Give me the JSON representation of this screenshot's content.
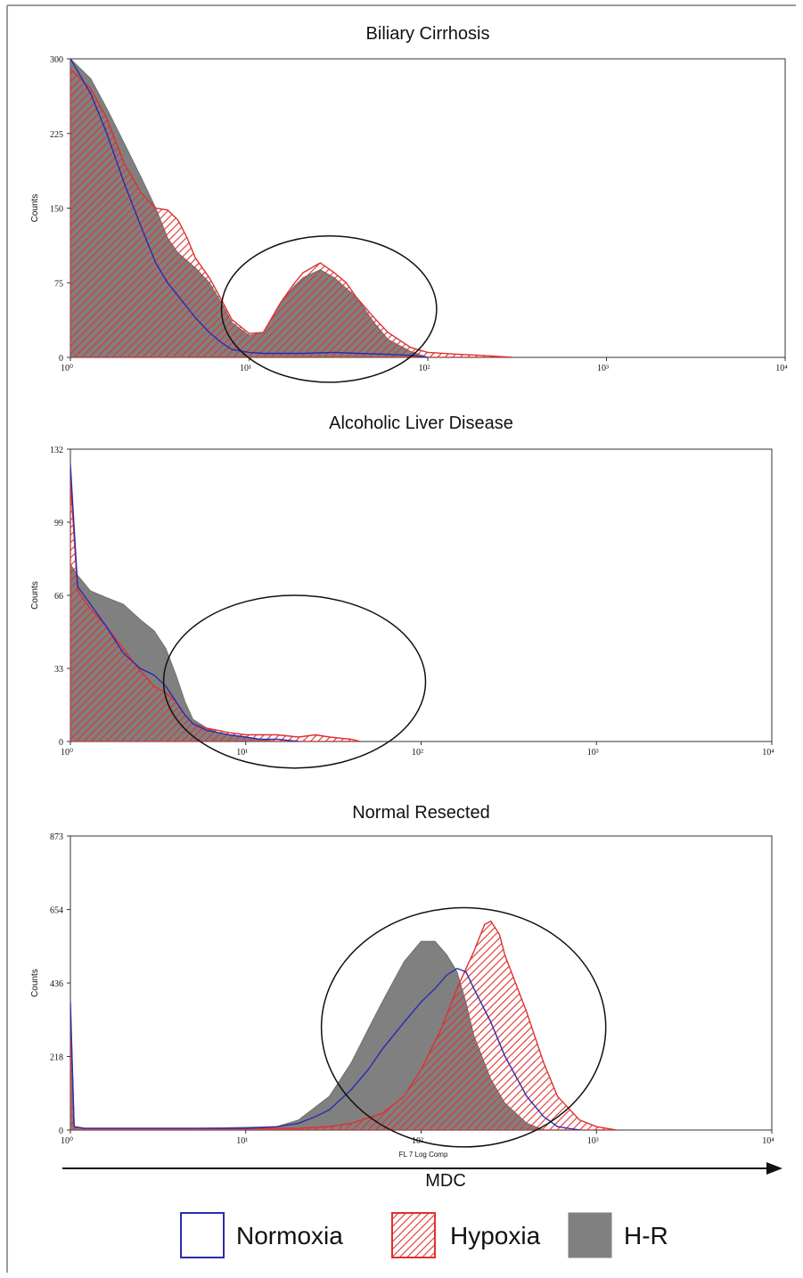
{
  "chart_data": [
    {
      "type": "area",
      "title": "Biliary Cirrhosis",
      "ylabel": "Counts",
      "xlabel": "",
      "xscale": "log",
      "xlim": [
        1,
        10000
      ],
      "ylim": [
        0,
        300
      ],
      "yticks": [
        "0",
        "75",
        "150",
        "225",
        "300"
      ],
      "xticks": [
        "10⁰",
        "10¹",
        "10²",
        "10³",
        "10⁴"
      ],
      "gate_ellipse": {
        "x_range": [
          7,
          112
        ],
        "y_range": [
          -25,
          122
        ]
      },
      "series": [
        {
          "name": "Normoxia",
          "x": [
            1,
            1.3,
            1.6,
            2,
            2.5,
            3,
            3.5,
            4,
            5,
            6,
            7,
            8,
            10,
            12,
            15,
            20,
            30,
            40,
            60,
            80,
            100
          ],
          "y": [
            300,
            265,
            225,
            175,
            130,
            95,
            75,
            62,
            40,
            25,
            15,
            8,
            5,
            4,
            4,
            4,
            5,
            4,
            3,
            2,
            0
          ]
        },
        {
          "name": "Hypoxia",
          "x": [
            1,
            1.3,
            1.6,
            2,
            2.5,
            3,
            3.5,
            4,
            4.5,
            5,
            6,
            7,
            8,
            10,
            12,
            15,
            18,
            20,
            25,
            30,
            35,
            40,
            50,
            60,
            80,
            100,
            150,
            200,
            300
          ],
          "y": [
            290,
            270,
            240,
            195,
            165,
            150,
            148,
            138,
            120,
            100,
            80,
            58,
            38,
            24,
            25,
            55,
            75,
            85,
            95,
            85,
            75,
            60,
            40,
            25,
            10,
            5,
            3,
            2,
            0
          ]
        },
        {
          "name": "H-R",
          "x": [
            1,
            1.3,
            1.6,
            2,
            2.5,
            3,
            3.5,
            4,
            5,
            6,
            7,
            8,
            10,
            12,
            15,
            18,
            20,
            25,
            30,
            40,
            50,
            60,
            80,
            100
          ],
          "y": [
            300,
            280,
            250,
            215,
            180,
            150,
            120,
            105,
            90,
            75,
            55,
            35,
            22,
            25,
            55,
            72,
            80,
            88,
            80,
            60,
            35,
            18,
            6,
            0
          ]
        }
      ]
    },
    {
      "type": "area",
      "title": "Alcoholic Liver Disease",
      "ylabel": "Counts",
      "xlabel": "",
      "xscale": "log",
      "xlim": [
        1,
        10000
      ],
      "ylim": [
        0,
        132
      ],
      "yticks": [
        "0",
        "33",
        "66",
        "99",
        "132"
      ],
      "xticks": [
        "10⁰",
        "10¹",
        "10²",
        "10³",
        "10⁴"
      ],
      "gate_ellipse": {
        "x_range": [
          3.4,
          106
        ],
        "y_range": [
          -12,
          66
        ]
      },
      "series": [
        {
          "name": "Normoxia",
          "x": [
            1,
            1.1,
            1.3,
            1.6,
            2,
            2.5,
            3,
            3.5,
            4,
            4.5,
            5,
            6,
            7,
            8,
            10,
            12,
            15,
            20
          ],
          "y": [
            125,
            70,
            62,
            52,
            40,
            33,
            30,
            25,
            18,
            12,
            8,
            5,
            4,
            3,
            2,
            1,
            1,
            0
          ]
        },
        {
          "name": "Hypoxia",
          "x": [
            1,
            1.1,
            1.3,
            1.6,
            2,
            2.5,
            3,
            3.5,
            4,
            4.5,
            5,
            6,
            7,
            8,
            10,
            15,
            20,
            25,
            30,
            40,
            45
          ],
          "y": [
            118,
            68,
            60,
            52,
            42,
            32,
            25,
            22,
            18,
            12,
            8,
            6,
            5,
            4,
            3,
            3,
            2,
            3,
            2,
            1,
            0
          ]
        },
        {
          "name": "H-R",
          "x": [
            1,
            1.1,
            1.3,
            1.6,
            2,
            2.5,
            3,
            3.5,
            4,
            4.5,
            5,
            6,
            7,
            8,
            10,
            12,
            15
          ],
          "y": [
            80,
            75,
            68,
            65,
            62,
            55,
            50,
            42,
            30,
            18,
            10,
            6,
            4,
            3,
            2,
            1,
            0
          ]
        }
      ]
    },
    {
      "type": "area",
      "title": "Normal Resected",
      "ylabel": "Counts",
      "xlabel": "FL 7 Log Comp",
      "xscale": "log",
      "xlim": [
        1,
        10000
      ],
      "ylim": [
        0,
        873
      ],
      "yticks": [
        "0",
        "218",
        "436",
        "654",
        "873"
      ],
      "xticks": [
        "10⁰",
        "10¹",
        "10²",
        "10³",
        "10⁴"
      ],
      "gate_ellipse": {
        "x_range": [
          27,
          1130
        ],
        "y_range": [
          -50,
          660
        ]
      },
      "series": [
        {
          "name": "Normoxia",
          "x": [
            1,
            1.05,
            1.2,
            2,
            5,
            10,
            15,
            20,
            25,
            30,
            40,
            50,
            60,
            80,
            100,
            120,
            140,
            160,
            180,
            200,
            250,
            300,
            400,
            500,
            600,
            800
          ],
          "y": [
            380,
            10,
            5,
            5,
            5,
            5,
            10,
            20,
            40,
            60,
            120,
            180,
            240,
            320,
            380,
            420,
            460,
            480,
            470,
            420,
            320,
            220,
            100,
            40,
            10,
            0
          ]
        },
        {
          "name": "Hypoxia",
          "x": [
            1,
            1.05,
            1.2,
            5,
            20,
            30,
            40,
            60,
            80,
            100,
            130,
            160,
            200,
            230,
            250,
            280,
            300,
            400,
            500,
            600,
            800,
            1000,
            1300
          ],
          "y": [
            360,
            10,
            5,
            5,
            5,
            10,
            20,
            50,
            100,
            180,
            300,
            420,
            530,
            610,
            620,
            580,
            520,
            350,
            200,
            100,
            30,
            10,
            0
          ]
        },
        {
          "name": "H-R",
          "x": [
            1,
            1.05,
            1.2,
            5,
            15,
            20,
            30,
            40,
            50,
            60,
            80,
            100,
            120,
            140,
            160,
            180,
            200,
            250,
            300,
            400,
            500
          ],
          "y": [
            340,
            10,
            5,
            5,
            10,
            30,
            100,
            200,
            300,
            380,
            500,
            560,
            560,
            520,
            470,
            380,
            280,
            150,
            80,
            20,
            0
          ]
        }
      ]
    }
  ],
  "axis_arrow_label": "MDC",
  "legend": {
    "items": [
      {
        "label": "Normoxia",
        "style": "outline",
        "color": "#2b2bb0"
      },
      {
        "label": "Hypoxia",
        "style": "hatch",
        "color": "#e03030"
      },
      {
        "label": "H-R",
        "style": "fill",
        "color": "#808080"
      }
    ]
  },
  "colors": {
    "normoxia": "#2b2bb0",
    "hypoxia": "#e03030",
    "hr_fill": "#808080"
  }
}
